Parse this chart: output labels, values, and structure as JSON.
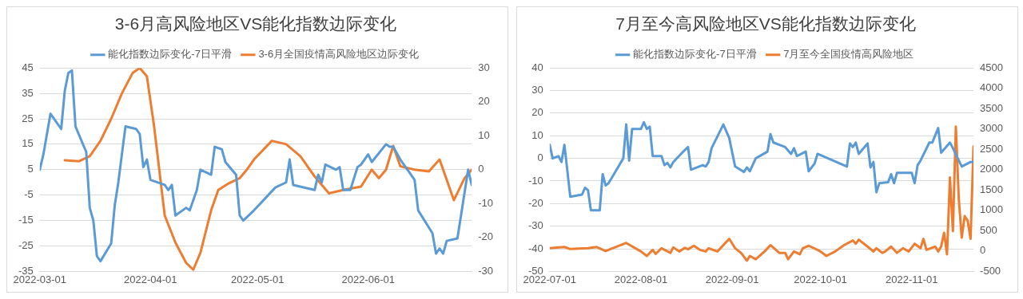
{
  "chart_data": [
    {
      "type": "line",
      "title": "3-6月高风险地区VS能化指数边际变化",
      "legend": "top",
      "grid": "y",
      "marker": "none",
      "line_style": "solid",
      "xlim": [
        "2022-03-01",
        "2022-06-30"
      ],
      "xticks": [
        "2022-03-01",
        "2022-04-01",
        "2022-05-01",
        "2022-06-01"
      ],
      "ylim": [
        -35,
        45
      ],
      "yticks": [
        -35,
        -25,
        -15,
        -5,
        5,
        15,
        25,
        35,
        45
      ],
      "y2lim": [
        -30,
        30
      ],
      "y2ticks": [
        -30,
        -20,
        -10,
        0,
        10,
        20,
        30
      ],
      "series": [
        {
          "name": "能化指数边际变化-7日平滑",
          "color": "#5b9bd5",
          "x": [
            "2022-03-01",
            "2022-03-02",
            "2022-03-04",
            "2022-03-07",
            "2022-03-08",
            "2022-03-09",
            "2022-03-10",
            "2022-03-11",
            "2022-03-14",
            "2022-03-15",
            "2022-03-16",
            "2022-03-17",
            "2022-03-18",
            "2022-03-21",
            "2022-03-22",
            "2022-03-23",
            "2022-03-25",
            "2022-03-28",
            "2022-03-29",
            "2022-03-30",
            "2022-03-31",
            "2022-04-01",
            "2022-04-05",
            "2022-04-06",
            "2022-04-07",
            "2022-04-08",
            "2022-04-11",
            "2022-04-12",
            "2022-04-14",
            "2022-04-15",
            "2022-04-18",
            "2022-04-19",
            "2022-04-21",
            "2022-04-22",
            "2022-04-25",
            "2022-04-26",
            "2022-04-27",
            "2022-04-30",
            "2022-05-06",
            "2022-05-09",
            "2022-05-10",
            "2022-05-11",
            "2022-05-17",
            "2022-05-18",
            "2022-05-19",
            "2022-05-20",
            "2022-05-23",
            "2022-05-24",
            "2022-05-25",
            "2022-05-27",
            "2022-05-29",
            "2022-05-30",
            "2022-06-01",
            "2022-06-02",
            "2022-06-06",
            "2022-06-07",
            "2022-06-08",
            "2022-06-10",
            "2022-06-14",
            "2022-06-15",
            "2022-06-19",
            "2022-06-20",
            "2022-06-21",
            "2022-06-22",
            "2022-06-23",
            "2022-06-26",
            "2022-06-29",
            "2022-06-30"
          ],
          "values": [
            5,
            11,
            27,
            21,
            36,
            43,
            44,
            22,
            12,
            -10,
            -15,
            -29,
            -31,
            -24,
            -9,
            0,
            22,
            21,
            19,
            6,
            9,
            1,
            -1,
            -3,
            -1,
            -13,
            -10,
            -11,
            -3,
            5,
            3,
            14,
            13,
            8,
            3,
            -13,
            -15,
            -11,
            -2,
            0,
            9,
            -1,
            -3,
            3,
            0,
            7,
            5,
            6,
            -3,
            -3,
            6,
            7,
            11,
            8,
            15,
            14,
            14,
            9,
            1,
            -11,
            -20,
            -28,
            -26,
            -28,
            -23,
            -22,
            5,
            -1
          ]
        },
        {
          "name": "3-6月全国疫情高风险地区边际变化",
          "color": "#ed7d31",
          "axis": "y2",
          "x": [
            "2022-03-08",
            "2022-03-12",
            "2022-03-15",
            "2022-03-18",
            "2022-03-21",
            "2022-03-24",
            "2022-03-27",
            "2022-03-29",
            "2022-03-31",
            "2022-04-02",
            "2022-04-05",
            "2022-04-08",
            "2022-04-11",
            "2022-04-13",
            "2022-04-15",
            "2022-04-18",
            "2022-04-20",
            "2022-04-23",
            "2022-04-26",
            "2022-04-28",
            "2022-04-30",
            "2022-05-05",
            "2022-05-09",
            "2022-05-13",
            "2022-05-17",
            "2022-05-21",
            "2022-05-25",
            "2022-05-30",
            "2022-06-02",
            "2022-06-04",
            "2022-06-06",
            "2022-06-08",
            "2022-06-10",
            "2022-06-14",
            "2022-06-18",
            "2022-06-21",
            "2022-06-25",
            "2022-06-28",
            "2022-06-30"
          ],
          "values": [
            2.8,
            2.5,
            4,
            8.5,
            15,
            22.5,
            28.5,
            30,
            27.5,
            13,
            -13.5,
            -21.5,
            -27.5,
            -29.5,
            -24.5,
            -12,
            -6,
            -4,
            -2.5,
            0,
            3,
            8.5,
            7.5,
            4,
            -2,
            -7,
            -6,
            -5,
            0,
            -2.5,
            0,
            7,
            1,
            0,
            -0.5,
            3,
            -9,
            -2.5,
            0
          ]
        }
      ]
    },
    {
      "type": "line",
      "title": "7月至今高风险地区VS能化指数边际变化",
      "legend": "top",
      "grid": "y",
      "marker": "none",
      "line_style": "solid",
      "xlim": [
        "2022-07-01",
        "2022-11-22"
      ],
      "xticks": [
        "2022-07-01",
        "2022-08-01",
        "2022-09-01",
        "2022-10-01",
        "2022-11-01"
      ],
      "ylim": [
        -50,
        40
      ],
      "yticks": [
        -50,
        -40,
        -30,
        -20,
        -10,
        0,
        10,
        20,
        30,
        40
      ],
      "y2lim": [
        -500,
        4500
      ],
      "y2ticks": [
        -500,
        0,
        500,
        1000,
        1500,
        2000,
        2500,
        3000,
        3500,
        4000,
        4500
      ],
      "series": [
        {
          "name": "能化指数边际变化-7日平滑",
          "color": "#5b9bd5",
          "x": [
            "2022-07-01",
            "2022-07-02",
            "2022-07-04",
            "2022-07-05",
            "2022-07-06",
            "2022-07-08",
            "2022-07-12",
            "2022-07-13",
            "2022-07-14",
            "2022-07-15",
            "2022-07-18",
            "2022-07-19",
            "2022-07-20",
            "2022-07-21",
            "2022-07-26",
            "2022-07-27",
            "2022-07-28",
            "2022-07-29",
            "2022-08-01",
            "2022-08-02",
            "2022-08-03",
            "2022-08-04",
            "2022-08-05",
            "2022-08-08",
            "2022-08-09",
            "2022-08-10",
            "2022-08-11",
            "2022-08-12",
            "2022-08-15",
            "2022-08-17",
            "2022-08-18",
            "2022-08-22",
            "2022-08-23",
            "2022-08-24",
            "2022-08-25",
            "2022-08-29",
            "2022-08-31",
            "2022-09-02",
            "2022-09-05",
            "2022-09-06",
            "2022-09-07",
            "2022-09-09",
            "2022-09-13",
            "2022-09-14",
            "2022-09-15",
            "2022-09-19",
            "2022-09-21",
            "2022-09-22",
            "2022-09-23",
            "2022-09-26",
            "2022-09-27",
            "2022-09-29",
            "2022-09-30",
            "2022-10-10",
            "2022-10-11",
            "2022-10-12",
            "2022-10-13",
            "2022-10-14",
            "2022-10-17",
            "2022-10-18",
            "2022-10-19",
            "2022-10-20",
            "2022-10-21",
            "2022-10-24",
            "2022-10-25",
            "2022-10-26",
            "2022-10-27",
            "2022-11-01",
            "2022-11-02",
            "2022-11-03",
            "2022-11-04",
            "2022-11-07",
            "2022-11-08",
            "2022-11-10",
            "2022-11-11",
            "2022-11-14",
            "2022-11-15",
            "2022-11-18",
            "2022-11-21",
            "2022-11-22"
          ],
          "values": [
            6,
            0,
            1,
            -1.6,
            6,
            -17,
            -16,
            -13,
            -14,
            -23,
            -23,
            -7,
            -12,
            -11,
            0,
            15,
            -1,
            13,
            13,
            16,
            13,
            14,
            1,
            1,
            -3,
            -2,
            -4,
            -1.6,
            2.5,
            5,
            -5,
            -3,
            -3.6,
            -1.6,
            4.5,
            15,
            9,
            -3.6,
            -6,
            -4,
            -5.7,
            0,
            3,
            10.7,
            7,
            5,
            2,
            4.5,
            1,
            3,
            -5.7,
            -2.3,
            2,
            -3.6,
            6.6,
            5,
            7,
            2,
            6.6,
            -4,
            -1.6,
            -15,
            -11,
            -10.5,
            -7,
            -11,
            -6.4,
            -6.4,
            -11,
            -3,
            -1,
            7,
            7,
            13.4,
            2.5,
            7,
            4.5,
            -3.6,
            -1.6,
            -1.6
          ]
        },
        {
          "name": "7月至今全国疫情高风险地区",
          "color": "#ed7d31",
          "axis": "y2",
          "x": [
            "2022-07-01",
            "2022-07-06",
            "2022-07-08",
            "2022-07-14",
            "2022-07-17",
            "2022-07-20",
            "2022-07-27",
            "2022-08-01",
            "2022-08-03",
            "2022-08-05",
            "2022-08-06",
            "2022-08-08",
            "2022-08-11",
            "2022-08-12",
            "2022-08-14",
            "2022-08-16",
            "2022-08-17",
            "2022-08-19",
            "2022-08-21",
            "2022-08-23",
            "2022-08-24",
            "2022-08-27",
            "2022-08-31",
            "2022-09-02",
            "2022-09-04",
            "2022-09-06",
            "2022-09-07",
            "2022-09-09",
            "2022-09-12",
            "2022-09-14",
            "2022-09-17",
            "2022-09-19",
            "2022-09-20",
            "2022-09-22",
            "2022-09-24",
            "2022-09-25",
            "2022-09-27",
            "2022-09-30",
            "2022-10-01",
            "2022-10-03",
            "2022-10-06",
            "2022-10-09",
            "2022-10-12",
            "2022-10-13",
            "2022-10-14",
            "2022-10-17",
            "2022-10-19",
            "2022-10-20",
            "2022-10-22",
            "2022-10-23",
            "2022-10-25",
            "2022-10-27",
            "2022-10-29",
            "2022-10-31",
            "2022-11-02",
            "2022-11-04",
            "2022-11-05",
            "2022-11-06",
            "2022-11-09",
            "2022-11-10",
            "2022-11-11",
            "2022-11-12",
            "2022-11-13",
            "2022-11-14",
            "2022-11-15",
            "2022-11-16",
            "2022-11-17",
            "2022-11-18",
            "2022-11-19",
            "2022-11-20",
            "2022-11-21",
            "2022-11-22"
          ],
          "values": [
            70,
            100,
            50,
            70,
            100,
            0,
            200,
            -10,
            -120,
            30,
            -70,
            70,
            -45,
            90,
            -10,
            80,
            45,
            130,
            30,
            -10,
            70,
            -10,
            300,
            70,
            -45,
            -235,
            -120,
            -200,
            -10,
            145,
            -45,
            -45,
            -200,
            -10,
            -80,
            70,
            130,
            30,
            -10,
            -120,
            -10,
            145,
            260,
            180,
            280,
            110,
            -10,
            70,
            -45,
            -10,
            110,
            -45,
            70,
            -10,
            180,
            70,
            300,
            30,
            110,
            -10,
            110,
            450,
            -80,
            1810,
            490,
            3060,
            1280,
            330,
            860,
            750,
            300,
            2570
          ]
        }
      ]
    }
  ]
}
